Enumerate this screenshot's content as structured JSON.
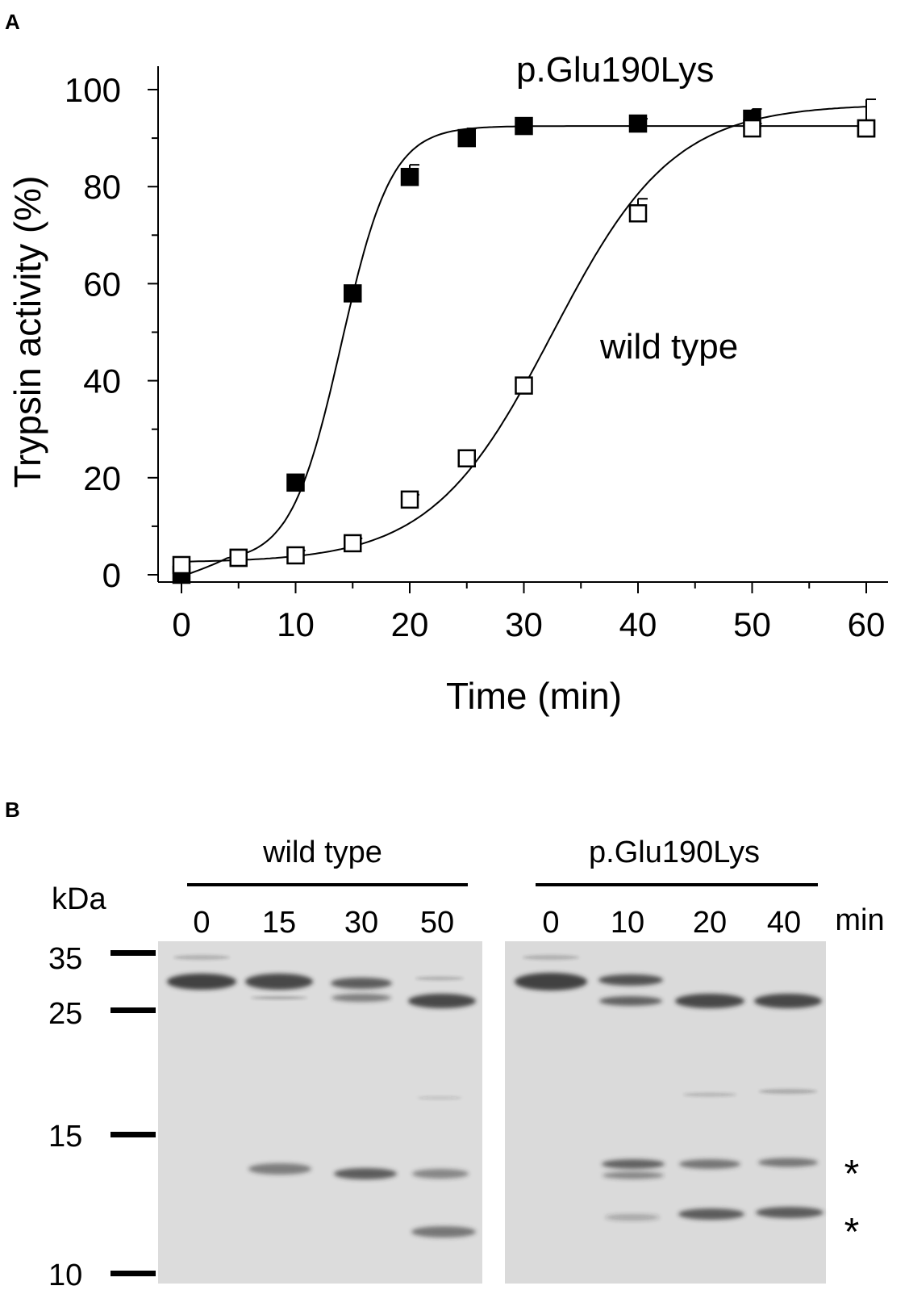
{
  "panel_a": {
    "letter": "A"
  },
  "panel_b": {
    "letter": "B",
    "unit_label": "kDa",
    "time_unit": "min",
    "groups": [
      {
        "name": "wild type",
        "times": [
          "0",
          "15",
          "30",
          "50"
        ]
      },
      {
        "name": "p.Glu190Lys",
        "times": [
          "0",
          "10",
          "20",
          "40"
        ]
      }
    ],
    "markers": [
      "35",
      "25",
      "15",
      "10"
    ],
    "band_annotations": [
      "*",
      "*"
    ]
  },
  "chart_data": {
    "type": "line",
    "title": "",
    "xlabel": "Time (min)",
    "ylabel": "Trypsin activity (%)",
    "xlim": [
      0,
      60
    ],
    "ylim": [
      0,
      100
    ],
    "xticks": [
      "0",
      "10",
      "20",
      "30",
      "40",
      "50",
      "60"
    ],
    "yticks": [
      "0",
      "20",
      "40",
      "60",
      "80",
      "100"
    ],
    "grid": false,
    "series": [
      {
        "name": "p.Glu190Lys",
        "marker": "filled-square",
        "color": "#000000",
        "x": [
          0,
          5,
          10,
          15,
          20,
          25,
          30,
          40,
          50,
          60
        ],
        "values": [
          0,
          3.5,
          19,
          58,
          82,
          90,
          92.5,
          93,
          94,
          92
        ],
        "errors": [
          0,
          0,
          0,
          0,
          2.5,
          2,
          0,
          1,
          2,
          0
        ]
      },
      {
        "name": "wild type",
        "marker": "open-square",
        "color": "#000000",
        "x": [
          0,
          5,
          10,
          15,
          20,
          25,
          30,
          40,
          50,
          60
        ],
        "values": [
          2,
          3.5,
          4,
          6.5,
          15.5,
          24,
          39,
          74.5,
          92,
          92
        ],
        "errors": [
          0,
          0,
          1,
          1,
          1,
          0,
          0,
          3,
          1,
          6
        ]
      }
    ],
    "fits": [
      {
        "series": "p.Glu190Lys",
        "bottom": 2.5,
        "top": 92.5,
        "x50": 14,
        "slope": 2.2,
        "tail_end": 92.5
      },
      {
        "series": "wild type",
        "bottom": 2.5,
        "top": 97,
        "x50": 32.5,
        "slope": 5.3
      }
    ]
  }
}
